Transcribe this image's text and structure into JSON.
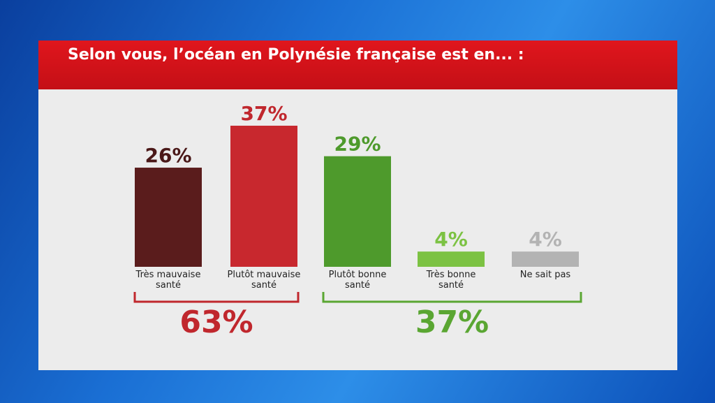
{
  "chart_data": {
    "type": "bar",
    "title": "Selon vous, l’océan en Polynésie française est en... :",
    "categories": [
      "Très mauvaise\nsanté",
      "Plutôt mauvaise\nsanté",
      "Plutôt bonne\nsanté",
      "Très bonne\nsanté",
      "Ne sait pas"
    ],
    "values": [
      26,
      37,
      29,
      4,
      4
    ],
    "value_labels": [
      "26%",
      "37%",
      "29%",
      "4%",
      "4%"
    ],
    "colors": [
      "#5a1c1c",
      "#c8282e",
      "#4e9a2c",
      "#7cc243",
      "#b3b3b3"
    ],
    "label_colors": [
      "#4a1818",
      "#c0272d",
      "#4e9a2c",
      "#7cc243",
      "#b3b3b3"
    ],
    "groups": [
      {
        "value": 63,
        "value_label": "63%",
        "color": "#c0272d"
      },
      {
        "value": 37,
        "value_label": "37%",
        "color": "#5aa632"
      }
    ]
  }
}
